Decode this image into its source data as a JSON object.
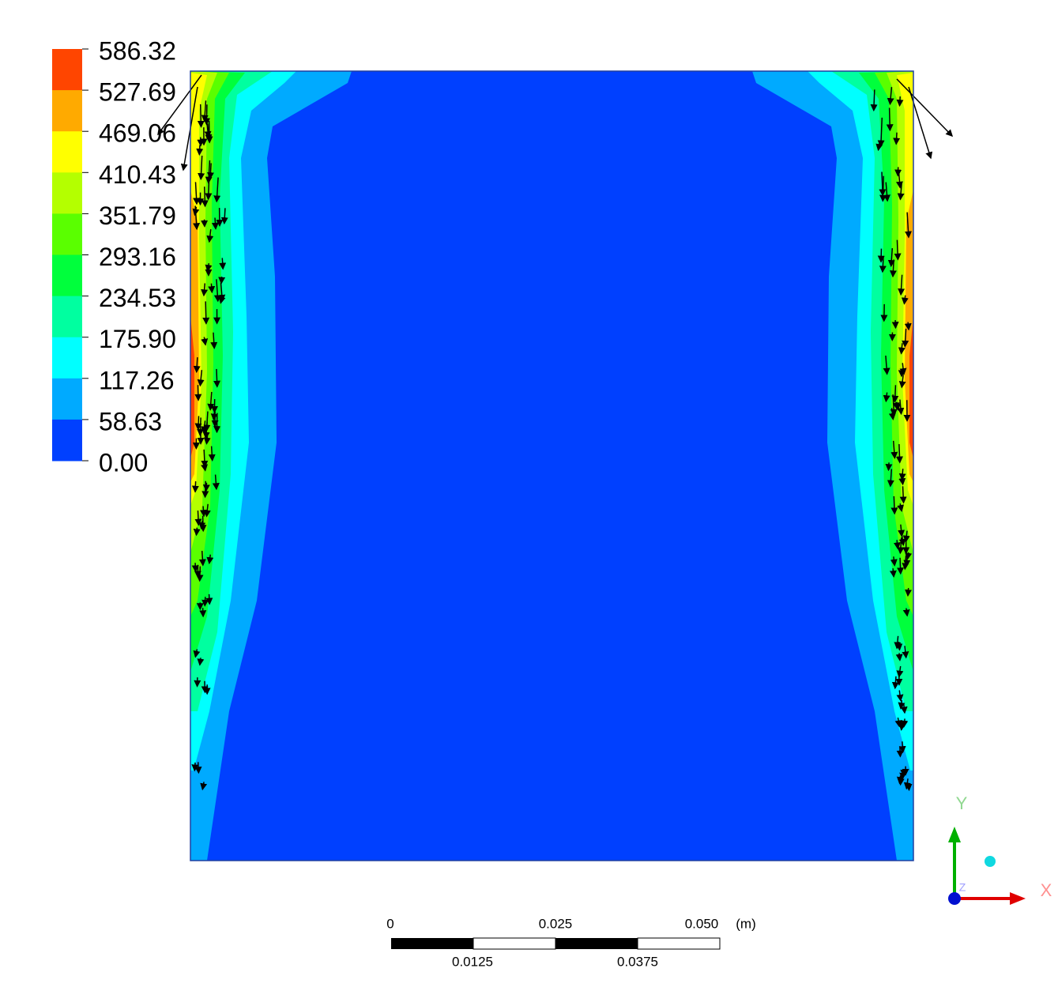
{
  "legend": {
    "levels": [
      "586.32",
      "527.69",
      "469.06",
      "410.43",
      "351.79",
      "293.16",
      "234.53",
      "175.90",
      "117.26",
      "58.63",
      "0.00"
    ],
    "colors": [
      "#ff4500",
      "#ffaa00",
      "#ffff00",
      "#b4ff00",
      "#5aff00",
      "#00ff3c",
      "#00ffa0",
      "#00ffff",
      "#00aaff",
      "#0040ff"
    ]
  },
  "scale_bar": {
    "top_labels": [
      "0",
      "0.025",
      "0.050"
    ],
    "unit": "(m)",
    "bottom_labels": [
      "0.0125",
      "0.0375"
    ]
  },
  "triad": {
    "y": "Y",
    "x": "X",
    "z": "Z"
  }
}
